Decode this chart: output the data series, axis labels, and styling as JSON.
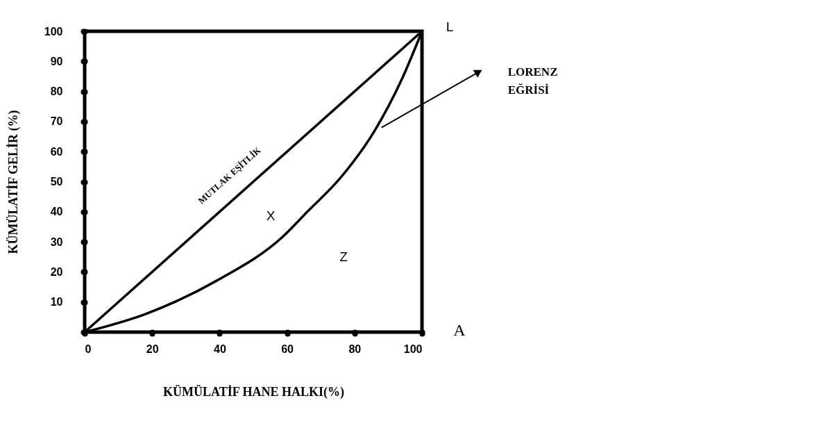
{
  "chart_data": {
    "type": "line",
    "xlabel": "KÜMÜLATİF HANE HALKI(%)",
    "ylabel": "KÜMÜLATİF GELİR (%)",
    "xlim": [
      0,
      100
    ],
    "ylim": [
      0,
      100
    ],
    "xticks": [
      0,
      20,
      40,
      60,
      80,
      100
    ],
    "yticks": [
      {
        "value": 0,
        "label": null
      },
      10,
      20,
      30,
      40,
      50,
      60,
      70,
      80,
      90,
      100
    ],
    "series": [
      {
        "name": "MUTLAK EŞİTLİK",
        "color": "#000000",
        "x": [
          0,
          100
        ],
        "values": [
          0,
          100
        ]
      },
      {
        "name": "LORENZ EĞRİSİ",
        "color": "#000000",
        "x": [
          0,
          18,
          39,
          59,
          66,
          76,
          86,
          94,
          100
        ],
        "values": [
          0,
          6,
          17,
          32,
          40,
          51.5,
          67,
          84,
          100
        ]
      }
    ],
    "annotations": [
      "X",
      "Z",
      "L",
      "A"
    ],
    "grid": false,
    "legend": "right",
    "marker": "none",
    "line_style": "solid"
  }
}
